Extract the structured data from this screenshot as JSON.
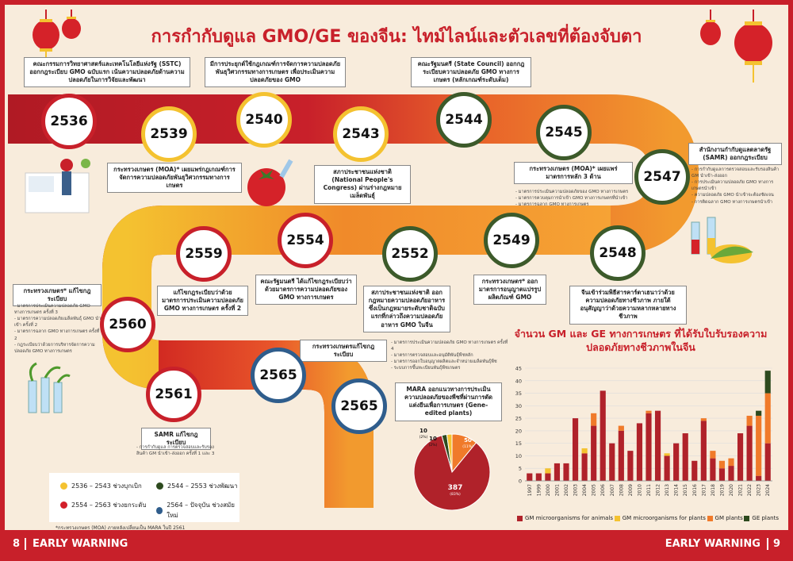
{
  "title": "การกำกับดูแล GMO/GE ของจีน: ไทม์ไลน์และตัวเลขที่ต้องจับตา",
  "footer": {
    "left_page": "8",
    "left_label": "EARLY WARNING",
    "right_page": "9",
    "right_label": "EARLY WARNING"
  },
  "timeline": [
    {
      "year": "2536",
      "phase": "gold",
      "card": "คณะกรรมการวิทยาศาสตร์และเทคโนโลยีแห่งรัฐ (SSTC) ออกกฎระเบียบ GMO ฉบับแรก เน้นความปลอดภัยด้านความปลอดภัยในการวิจัยและพัฒนา"
    },
    {
      "year": "2539",
      "phase": "gold",
      "card": "กระทรวงเกษตร (MOA)* เผยแพร่กฎเกณฑ์การจัดการความปลอดภัยพันธุวิศวกรรมทางการเกษตร"
    },
    {
      "year": "2540",
      "phase": "gold",
      "card": "มีการประยุกต์ใช้กฎเกณฑ์การจัดการความปลอดภัยพันธุวิศวกรรมทางการเกษตร เพื่อประเมินความปลอดภัยของ GMO"
    },
    {
      "year": "2543",
      "phase": "gold",
      "card": "สภาประชาชนแห่งชาติ (National People's Congress) ผ่านร่างกฎหมายเมล็ดพันธุ์"
    },
    {
      "year": "2544",
      "phase": "green",
      "card": "คณะรัฐมนตรี (State Council) ออกกฎระเบียบความปลอดภัย GMO ทางการเกษตร (หลักเกณฑ์ระดับเต็ม)"
    },
    {
      "year": "2545",
      "phase": "green",
      "card": "กระทรวงเกษตร (MOA)* เผยแพร่มาตรการหลัก 3 ด้าน",
      "notes": [
        "มาตรการประเมินความปลอดภัยของ GMO ทางการเกษตร",
        "มาตรการควบคุมการนำเข้า GMO ทางการเกษตรที่นำเข้า",
        "มาตรการฉลาก GMO ทางการเกษตร"
      ]
    },
    {
      "year": "2547",
      "phase": "green",
      "card": "สำนักงานกำกับดูแลตลาดรัฐ (SAMR) ออกกฎระเบียบ",
      "notes": [
        "การกำกับดูแลการตรวจสอบและรับรองสินค้า GM นำเข้า-ส่งออก",
        "การประเมินความปลอดภัย GMO ทางการเกษตรนำเข้า",
        "ความปลอดภัย GMO นำเข้าจะต้องชัดเจน",
        "การติดฉลาก GMO ทางการเกษตรนำเข้า"
      ]
    },
    {
      "year": "2548",
      "phase": "green",
      "card": "จีนเข้าร่วมพิธีสารคาร์ตาเฮนาว่าด้วยความปลอดภัยทางชีวภาพ ภายใต้อนุสัญญาว่าด้วยความหลากหลายทางชีวภาพ"
    },
    {
      "year": "2549",
      "phase": "green",
      "card": "กระทรวงเกษตร* ออกมาตรการอนุญาตแปรรูปผลิตภัณฑ์ GMO"
    },
    {
      "year": "2552",
      "phase": "green",
      "card": "สภาประชาชนแห่งชาติ ออกกฎหมายความปลอดภัยอาหาร ซึ่งเป็นกฎหมายระดับชาติฉบับแรกที่กล่าวถึงความปลอดภัยอาหาร GMO ในจีน"
    },
    {
      "year": "2554",
      "phase": "red",
      "card": "คณะรัฐมนตรี ได้แก้ไขกฎระเบียบว่าด้วยมาตรการความปลอดภัยของ GMO ทางการเกษตร"
    },
    {
      "year": "2559",
      "phase": "red",
      "card": "แก้ไขกฎระเบียบว่าด้วยมาตรการประเมินความปลอดภัย GMO ทางการเกษตร ครั้งที่ 2"
    },
    {
      "year": "2560",
      "phase": "red",
      "card": "กระทรวงเกษตร* แก้ไขกฎระเบียบ",
      "notes": [
        "มาตรการประเมินความปลอดภัย GMO ทางการเกษตร ครั้งที่ 3",
        "มาตรการความปลอดภัยเมล็ดพันธุ์ GMO นำเข้า ครั้งที่ 2",
        "มาตรการฉลาก GMO ทางการเกษตร ครั้งที่ 2",
        "กฎระเบียบว่าด้วยการบริหารจัดการความปลอดภัย GMO ทางการเกษตร"
      ]
    },
    {
      "year": "2561",
      "phase": "red",
      "card": "SAMR แก้ไขกฎระเบียบ",
      "notes": [
        "การกำกับดูแล การตรวจสอบและรับรองสินค้า GM นำเข้า-ส่งออก ครั้งที่ 1 และ 3"
      ]
    },
    {
      "year": "2565",
      "phase": "blue",
      "card": "กระทรวงเกษตรแก้ไขกฎระเบียบ",
      "notes": [
        "มาตรการประเมินความปลอดภัย GMO ทางการเกษตร ครั้งที่ 4",
        "มาตรการตรวจสอบและอนุมัติพันธุ์พืชหลัก",
        "มาตรการออกใบอนุญาตผลิตและจำหน่ายเมล็ดพันธุ์พืช",
        "ระบบการขึ้นทะเบียนพันธุ์พืชเกษตร"
      ]
    },
    {
      "year": "2565",
      "phase": "blue",
      "card": "MARA ออกแนวทางการประเมินความปลอดภัยของพืชที่ผ่านการตัดแต่งยีนเพื่อการเกษตร (Gene-edited plants)"
    }
  ],
  "legend": [
    {
      "label": "2536 – 2543 ช่วงบุกเบิก",
      "color": "#f4c230"
    },
    {
      "label": "2544 – 2553 ช่วงพัฒนา",
      "color": "#2d4a1e"
    },
    {
      "label": "2554 – 2563 ช่วงยกระดับ",
      "color": "#d21f2a"
    },
    {
      "label": "2564 – ปัจจุบัน ช่วงสมัยใหม่",
      "color": "#2f5d8c"
    }
  ],
  "footnote": "*กระทรวงเกษตร (MOA) ภายหลังเปลี่ยนเป็น MARA ในปี 2561",
  "chart_data": [
    {
      "type": "pie",
      "slices": [
        {
          "value": 387,
          "pct": "(83%)",
          "color": "#b0222a"
        },
        {
          "value": 50,
          "pct": "(11%)",
          "color": "#f07a2a"
        },
        {
          "value": 10,
          "pct": "(2%)",
          "color": "#f4c230"
        },
        {
          "value": 10,
          "pct": "(2%)",
          "color": "#2d4a1e"
        }
      ]
    },
    {
      "type": "bar",
      "stacked": true,
      "title": "จำนวน GM และ GE ทางการเกษตร ที่ได้รับใบรับรองความปลอดภัยทางชีวภาพในจีน",
      "categories": [
        "1997",
        "1999",
        "2000",
        "2001",
        "2002",
        "2003",
        "2004",
        "2005",
        "2006",
        "2007",
        "2008",
        "2009",
        "2010",
        "2011",
        "2012",
        "2013",
        "2014",
        "2015",
        "2016",
        "2017",
        "2018",
        "2019",
        "2020",
        "2021",
        "2022",
        "2023",
        "2024"
      ],
      "ylim": [
        0,
        45
      ],
      "yticks": [
        0,
        5,
        10,
        15,
        20,
        25,
        30,
        35,
        40,
        45
      ],
      "legend_position": "bottom",
      "series": [
        {
          "name": "GM microorganisms for animals",
          "color": "#b0222a",
          "values": [
            3,
            3,
            3,
            7,
            7,
            25,
            11,
            22,
            36,
            15,
            20,
            12,
            23,
            27,
            28,
            10,
            15,
            19,
            8,
            24,
            9,
            5,
            6,
            19,
            22,
            2,
            15
          ]
        },
        {
          "name": "GM microorganisms for plants",
          "color": "#f4c230",
          "values": [
            0,
            0,
            2,
            0,
            0,
            0,
            2,
            0,
            0,
            0,
            0,
            0,
            0,
            0,
            0,
            1,
            0,
            0,
            0,
            0,
            0,
            0,
            0,
            0,
            0,
            0,
            0
          ]
        },
        {
          "name": "GM plants",
          "color": "#f07a2a",
          "values": [
            0,
            0,
            0,
            0,
            0,
            0,
            0,
            5,
            0,
            0,
            2,
            0,
            0,
            1,
            0,
            0,
            0,
            0,
            0,
            1,
            3,
            3,
            3,
            0,
            4,
            24,
            20
          ]
        },
        {
          "name": "GE plants",
          "color": "#2d4a1e",
          "values": [
            0,
            0,
            0,
            0,
            0,
            0,
            0,
            0,
            0,
            0,
            0,
            0,
            0,
            0,
            0,
            0,
            0,
            0,
            0,
            0,
            0,
            0,
            0,
            0,
            0,
            2,
            9
          ]
        }
      ]
    }
  ]
}
